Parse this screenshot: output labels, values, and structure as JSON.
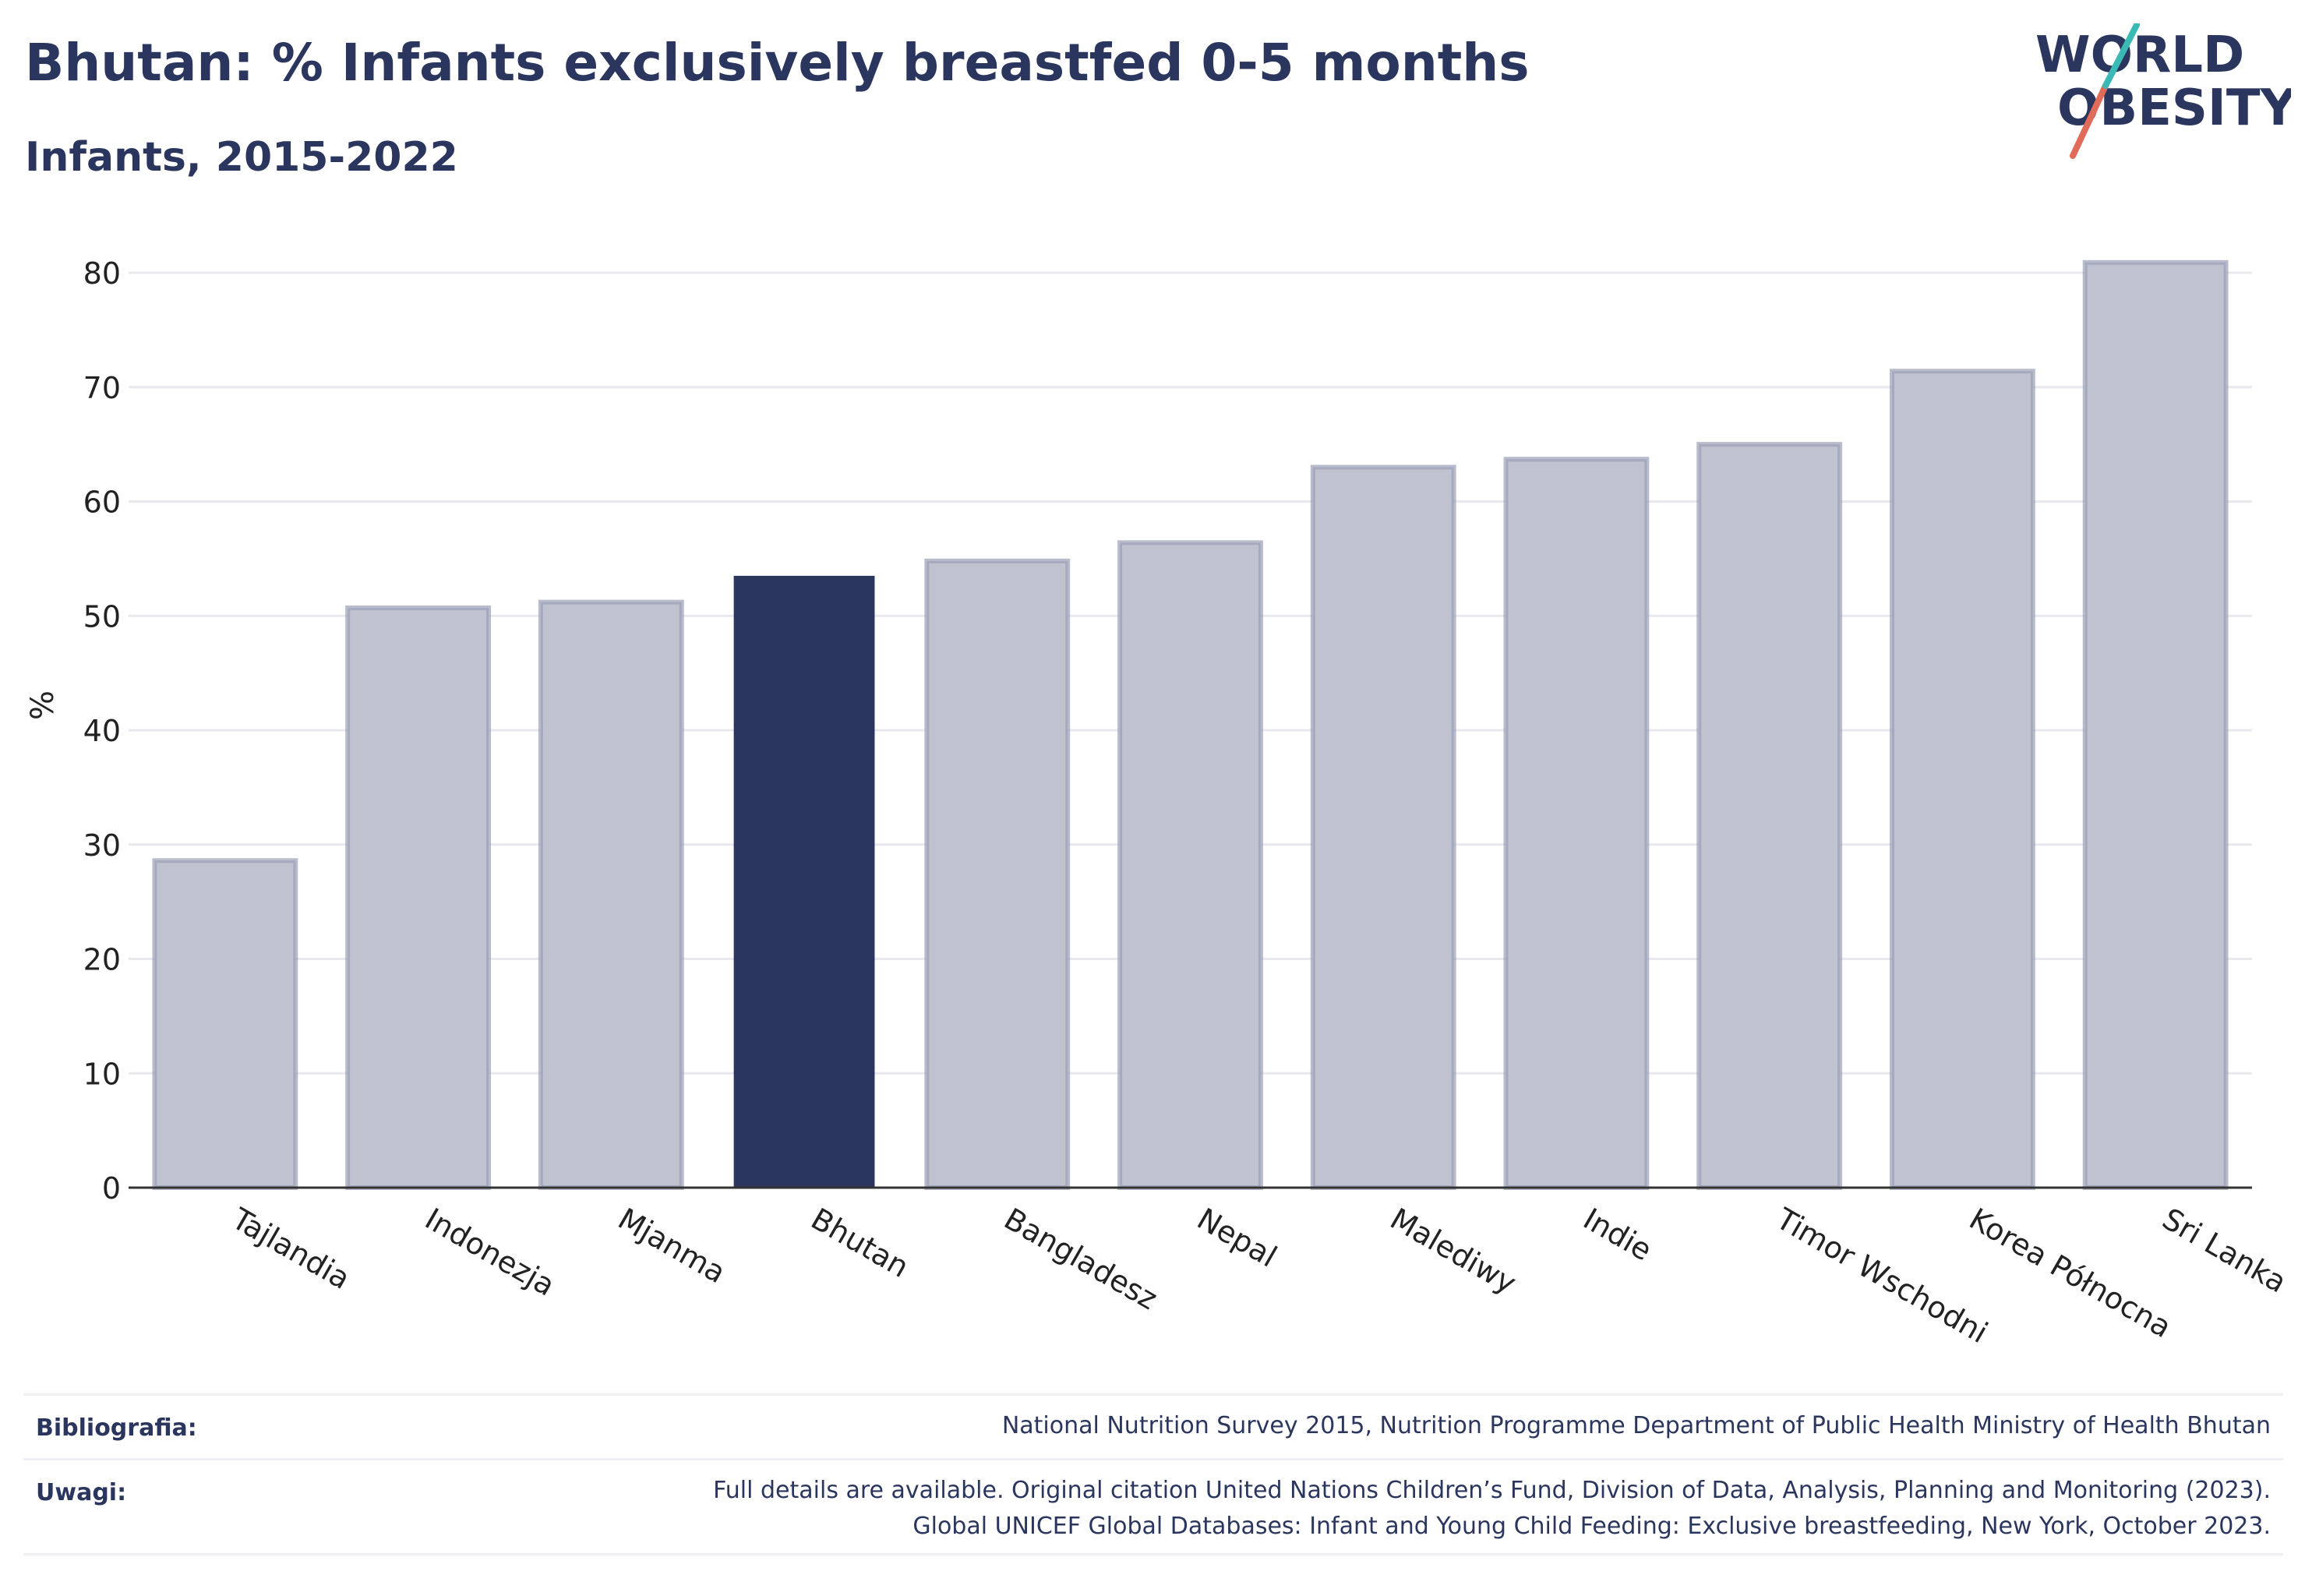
{
  "title": "Bhutan: % Infants exclusively breastfed 0-5 months",
  "subtitle": "Infants, 2015-2022",
  "logo": {
    "line1": "WORLD",
    "line2": "OBESITY"
  },
  "colors": {
    "highlight": "#2b365f",
    "bar_fill": "#bfc3d0",
    "bar_stroke": "#9aa0b6",
    "grid": "#e8e9ee",
    "text": "#2b365f"
  },
  "chart_data": {
    "type": "bar",
    "ylabel": "%",
    "xlabel": "",
    "ylim": [
      0,
      83
    ],
    "yticks": [
      0,
      10,
      20,
      30,
      40,
      50,
      60,
      70,
      80
    ],
    "grid": true,
    "highlight": "Bhutan",
    "categories": [
      "Tajlandia",
      "Indonezja",
      "Mjanma",
      "Bhutan",
      "Bangladesz",
      "Nepal",
      "Malediwy",
      "Indie",
      "Timor Wschodni",
      "Korea Północna",
      "Sri Lanka"
    ],
    "values": [
      28.6,
      50.7,
      51.2,
      53.5,
      54.8,
      56.4,
      63.0,
      63.7,
      65.0,
      71.4,
      80.9
    ]
  },
  "footer": {
    "bibliography_label": "Bibliografia:",
    "bibliography_text": "National Nutrition Survey 2015, Nutrition Programme Department of Public Health Ministry of Health Bhutan",
    "notes_label": "Uwagi:",
    "notes_line1": "Full details are available. Original citation United Nations Children’s Fund, Division of Data, Analysis, Planning and Monitoring (2023).",
    "notes_line2": "Global UNICEF Global Databases: Infant and Young Child Feeding: Exclusive breastfeeding, New York, October 2023."
  }
}
